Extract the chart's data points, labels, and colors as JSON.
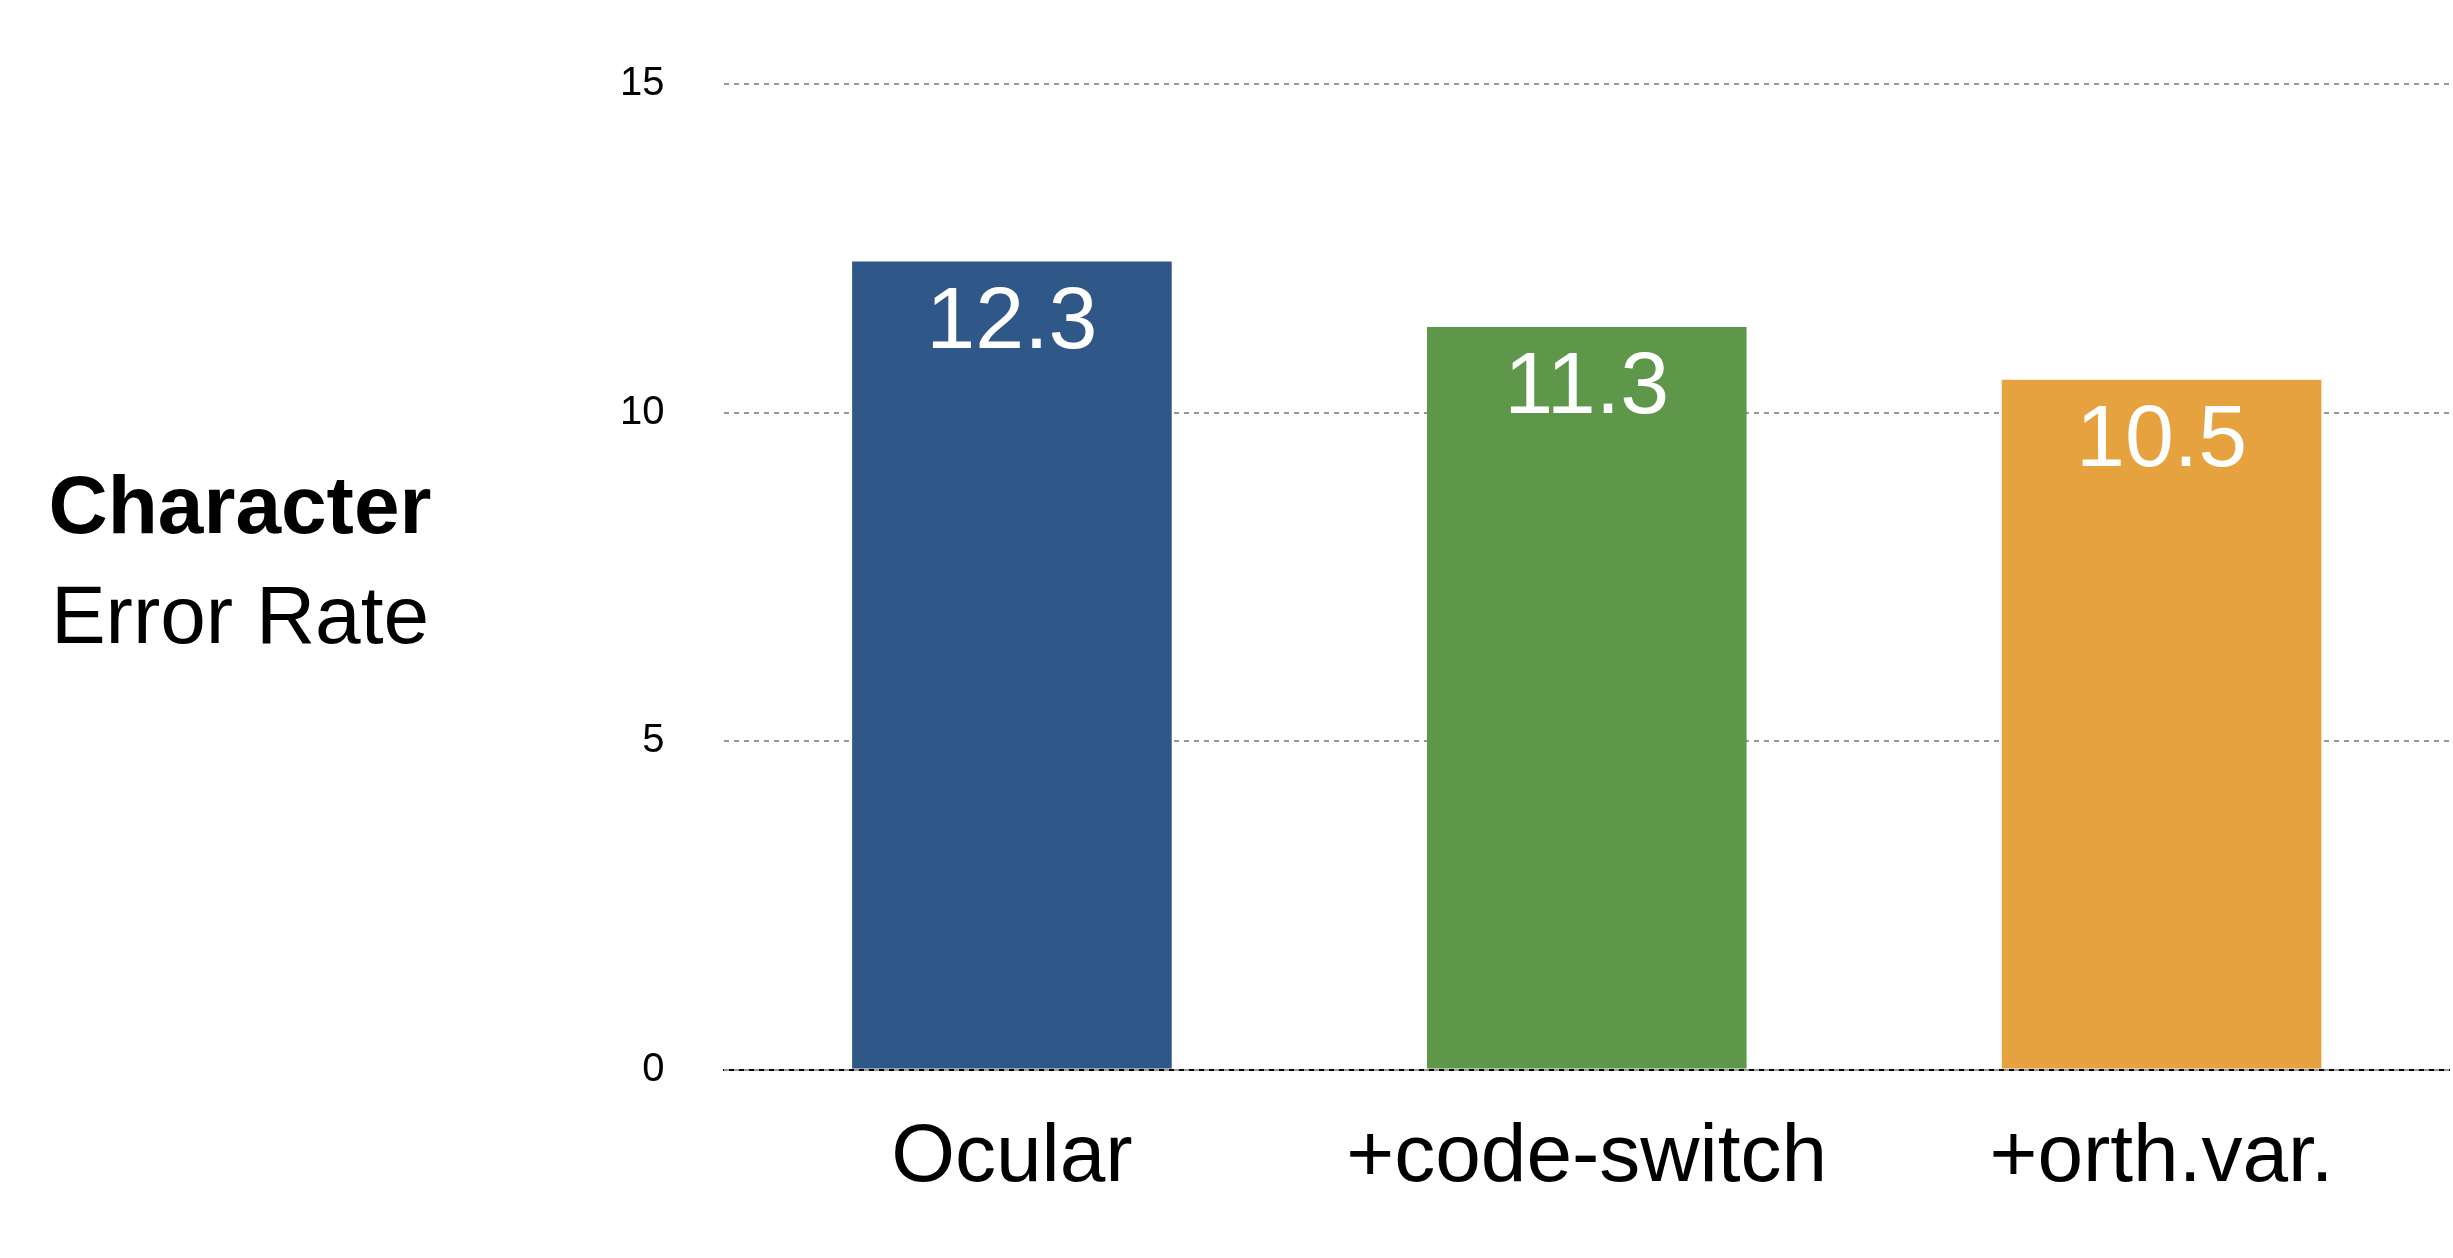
{
  "chart_data": {
    "type": "bar",
    "ylabel": "Character Error Rate",
    "categories": [
      "Ocular",
      "+code-switch",
      "+orth.var."
    ],
    "values": [
      12.3,
      11.3,
      10.5
    ],
    "colors": [
      "#2f5888",
      "#5e974a",
      "#e6a23e"
    ],
    "ylim": [
      0,
      15
    ],
    "yticks": [
      0,
      5,
      10,
      15
    ],
    "grid": "y",
    "data_labels": true
  }
}
